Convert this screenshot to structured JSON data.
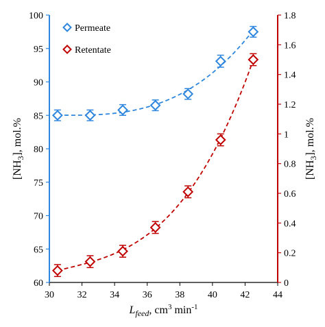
{
  "chart_data": {
    "type": "scatter",
    "x": [
      30.5,
      32.5,
      34.5,
      36.5,
      38.5,
      40.5,
      42.5
    ],
    "series": [
      {
        "name": "Permeate",
        "axis": "left",
        "color": "#2E86DE",
        "marker": "diamond-open",
        "values": [
          85.0,
          85.0,
          85.8,
          86.5,
          88.2,
          93.1,
          97.5
        ],
        "error": [
          0.8,
          0.8,
          0.8,
          0.8,
          0.8,
          0.9,
          0.8
        ],
        "trend": "dashed-polynomial"
      },
      {
        "name": "Retentate",
        "axis": "right",
        "color": "#C00000",
        "marker": "diamond-open",
        "values": [
          0.08,
          0.14,
          0.21,
          0.37,
          0.61,
          0.96,
          1.5
        ],
        "error": [
          0.04,
          0.04,
          0.04,
          0.04,
          0.04,
          0.04,
          0.04
        ],
        "trend": "dashed-polynomial"
      }
    ],
    "xlim": [
      30,
      44
    ],
    "xticks": [
      30,
      32,
      34,
      36,
      38,
      40,
      42,
      44
    ],
    "ylim_left": [
      60,
      100
    ],
    "yticks_left": [
      60,
      65,
      70,
      75,
      80,
      85,
      90,
      95,
      100
    ],
    "ylim_right": [
      0,
      1.8
    ],
    "yticks_right": [
      0,
      0.2,
      0.4,
      0.6,
      0.8,
      1,
      1.2,
      1.4,
      1.6,
      1.8
    ],
    "xlabel": {
      "main": "L",
      "sub": "feed",
      "rest": ", cm",
      "sup": "3",
      "tail": " min",
      "sup2": "-1"
    },
    "ylabel_left": {
      "pre": "[NH",
      "sub": "3",
      "post": "], mol.%"
    },
    "ylabel_right": {
      "pre": "[NH",
      "sub": "3",
      "post": "], mol.%"
    },
    "legend": {
      "placement": "top-left",
      "entries": [
        "Permeate",
        "Retentate"
      ]
    },
    "grid": false,
    "left_axis_color": "#2E86DE",
    "right_axis_color": "#C00000"
  }
}
